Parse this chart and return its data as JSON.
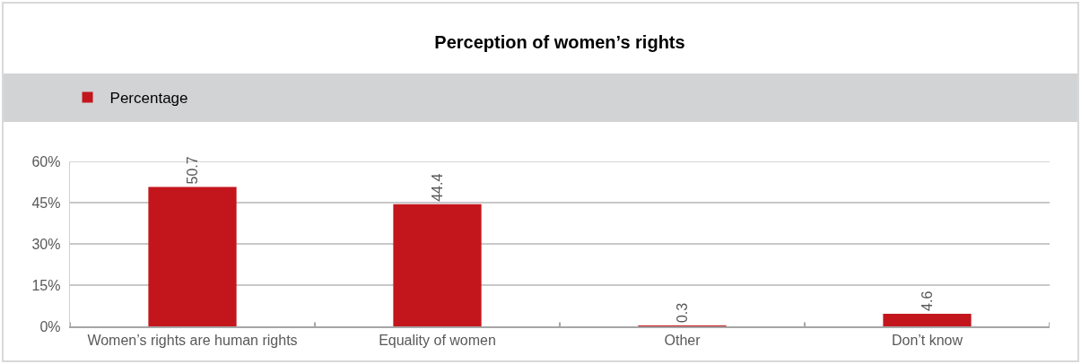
{
  "chart_data": {
    "type": "bar",
    "title": "Perception of women’s rights",
    "categories": [
      "Women’s rights are human rights",
      "Equality of women",
      "Other",
      "Don’t know"
    ],
    "series": [
      {
        "name": "Percentage",
        "color": "#c3161c",
        "values": [
          50.7,
          44.4,
          0.3,
          4.6
        ]
      }
    ],
    "ylim": [
      0,
      60
    ],
    "yticks": [
      {
        "value": 0,
        "label": "0%"
      },
      {
        "value": 15,
        "label": "15%"
      },
      {
        "value": 30,
        "label": "30%"
      },
      {
        "value": 45,
        "label": "45%"
      },
      {
        "value": 60,
        "label": "60%"
      }
    ],
    "grid": "y",
    "legend": "top left",
    "data_labels": true
  }
}
